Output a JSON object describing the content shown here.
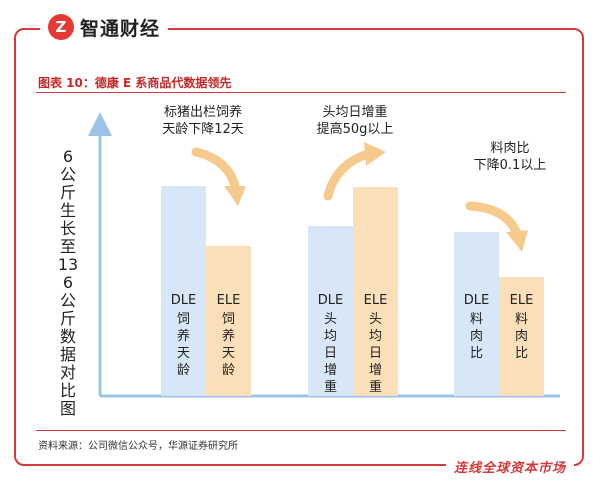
{
  "brand": {
    "logo_glyph": "Z",
    "name": "智通财经"
  },
  "figure_title": "图表 10：德康 E 系商品代数据领先",
  "source": "资料来源：公司微信公众号，华源证券研究所",
  "slogan": "连线全球资本市场",
  "colors": {
    "dle": "#d7e7f7",
    "ele": "#fbdfb9",
    "arrow": "#f6c98c",
    "axis": "#9cc2ea",
    "frame": "#d43a3a"
  },
  "chart_data": {
    "type": "bar",
    "ylabel": "6公斤生长至136公斤数据对比图",
    "categories": [
      "饲养天龄",
      "头均日增重",
      "料肉比"
    ],
    "series": [
      {
        "name": "DLE",
        "values": [
          210,
          170,
          164
        ]
      },
      {
        "name": "ELE",
        "values": [
          150,
          209,
          119
        ]
      }
    ],
    "ylim": [
      0,
      280
    ],
    "bar_labels": [
      {
        "dle": {
          "code": "DLE",
          "text": "饲养天龄"
        },
        "ele": {
          "code": "ELE",
          "text": "饲养天龄"
        }
      },
      {
        "dle": {
          "code": "DLE",
          "text": "头均日增重"
        },
        "ele": {
          "code": "ELE",
          "text": "头均日增重"
        }
      },
      {
        "dle": {
          "code": "DLE",
          "text": "料肉比"
        },
        "ele": {
          "code": "ELE",
          "text": "料肉比"
        }
      }
    ],
    "annotations": [
      "标猪出栏饲养\n天龄下降12天",
      "头均日增重\n提高50g以上",
      "料肉比\n下降0.1以上"
    ],
    "grid": false,
    "legend": "none"
  }
}
